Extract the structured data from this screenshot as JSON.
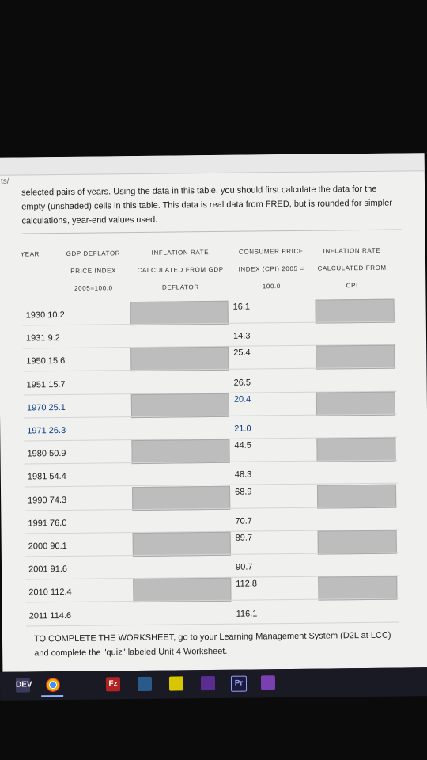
{
  "browser": {
    "url_fragment": "ts/"
  },
  "intro": {
    "text": "selected pairs of years. Using the data in this table, you should first calculate the data for the empty (unshaded) cells in this table. This data is real data from FRED, but is rounded for simpler calculations, year-end values used."
  },
  "table": {
    "headers": [
      {
        "line1": "YEAR",
        "line2": "",
        "line3": ""
      },
      {
        "line1": "GDP DEFLATOR",
        "line2": "PRICE INDEX",
        "line3": "2005=100.0"
      },
      {
        "line1": "INFLATION RATE",
        "line2": "CALCULATED FROM GDP",
        "line3": "DEFLATOR"
      },
      {
        "line1": "CONSUMER PRICE",
        "line2": "INDEX (CPI) 2005 =",
        "line3": "100.0"
      },
      {
        "line1": "INFLATION RATE",
        "line2": "CALCULATED FROM",
        "line3": "CPI"
      }
    ],
    "rows": [
      {
        "year": "1930",
        "gdp": "10.2",
        "cpi": "16.1",
        "shaded": true,
        "link": false
      },
      {
        "year": "1931",
        "gdp": "9.2",
        "cpi": "14.3",
        "shaded": false,
        "link": false
      },
      {
        "year": "1950",
        "gdp": "15.6",
        "cpi": "25.4",
        "shaded": true,
        "link": false
      },
      {
        "year": "1951",
        "gdp": "15.7",
        "cpi": "26.5",
        "shaded": false,
        "link": false
      },
      {
        "year": "1970",
        "gdp": "25.1",
        "cpi": "20.4",
        "shaded": true,
        "link": true
      },
      {
        "year": "1971",
        "gdp": "26.3",
        "cpi": "21.0",
        "shaded": false,
        "link": true
      },
      {
        "year": "1980",
        "gdp": "50.9",
        "cpi": "44.5",
        "shaded": true,
        "link": false
      },
      {
        "year": "1981",
        "gdp": "54.4",
        "cpi": "48.3",
        "shaded": false,
        "link": false
      },
      {
        "year": "1990",
        "gdp": "74.3",
        "cpi": "68.9",
        "shaded": true,
        "link": false
      },
      {
        "year": "1991",
        "gdp": "76.0",
        "cpi": "70.7",
        "shaded": false,
        "link": false
      },
      {
        "year": "2000",
        "gdp": "90.1",
        "cpi": "89.7",
        "shaded": true,
        "link": false
      },
      {
        "year": "2001",
        "gdp": "91.6",
        "cpi": "90.7",
        "shaded": false,
        "link": false
      },
      {
        "year": "2010",
        "gdp": "112.4",
        "cpi": "112.8",
        "shaded": true,
        "link": false
      },
      {
        "year": "2011",
        "gdp": "114.6",
        "cpi": "116.1",
        "shaded": false,
        "link": false
      }
    ]
  },
  "instructions": {
    "text": "TO COMPLETE THE WORKSHEET, go to your Learning Management System (D2L at LCC) and complete the \"quiz\" labeled Unit 4 Worksheet."
  },
  "taskbar": {
    "apps": [
      {
        "label": "DEV",
        "icon": "dev-tools-icon",
        "color": "#3a3a5c"
      },
      {
        "label": "",
        "icon": "chrome-icon",
        "color": "#e0b300"
      },
      {
        "label": "",
        "icon": "network-icon",
        "color": "#1a1a24"
      },
      {
        "label": "Fz",
        "icon": "filezilla-icon",
        "color": "#b22222"
      },
      {
        "label": "",
        "icon": "photos-icon",
        "color": "#2a5a8a"
      },
      {
        "label": "",
        "icon": "notes-icon",
        "color": "#d8c600"
      },
      {
        "label": "",
        "icon": "visual-studio-icon",
        "color": "#5c2d91"
      },
      {
        "label": "Pr",
        "icon": "premiere-icon",
        "color": "#1a1a3a"
      },
      {
        "label": "",
        "icon": "visual-studio-icon",
        "color": "#7a3fb0"
      }
    ]
  },
  "colors": {
    "shade": "#bdbdbd",
    "link": "#0d3e86",
    "page": "#f0f0ef",
    "taskbar": "#1a1a24"
  }
}
